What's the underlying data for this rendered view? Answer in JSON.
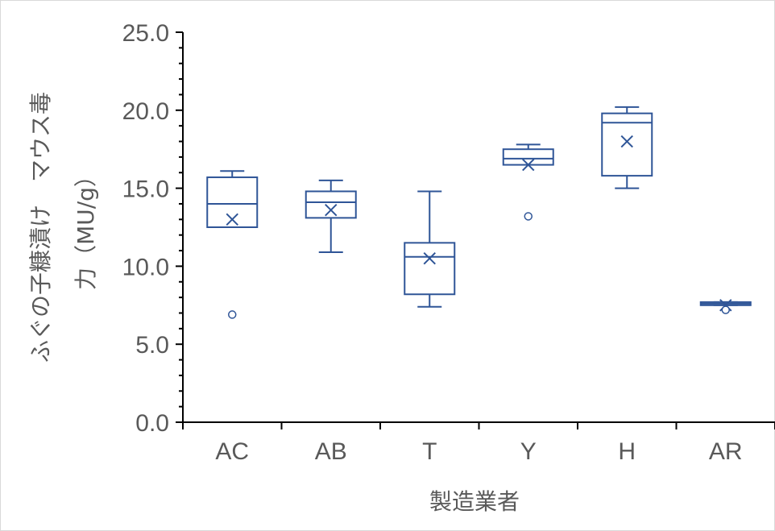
{
  "chart_data": {
    "type": "box",
    "categories": [
      "AC",
      "AB",
      "T",
      "Y",
      "H",
      "AR"
    ],
    "xlabel": "製造業者",
    "ylabel_line1": "ふぐの子糠漬け　マウス毒",
    "ylabel_line2": "力（MU/g）",
    "ylim": [
      0,
      25
    ],
    "yticks": [
      "0.0",
      "5.0",
      "10.0",
      "15.0",
      "20.0",
      "25.0"
    ],
    "ytick_values": [
      0,
      5,
      10,
      15,
      20,
      25
    ],
    "grid": false,
    "box_color": "#2F5597",
    "series": [
      {
        "category": "AC",
        "whisker_low": 12.5,
        "q1": 12.5,
        "median": 14.0,
        "q3": 15.7,
        "whisker_high": 16.1,
        "mean": 13.0,
        "outliers": [
          6.9
        ]
      },
      {
        "category": "AB",
        "whisker_low": 10.9,
        "q1": 13.1,
        "median": 14.1,
        "q3": 14.8,
        "whisker_high": 15.5,
        "mean": 13.6,
        "outliers": []
      },
      {
        "category": "T",
        "whisker_low": 7.4,
        "q1": 8.2,
        "median": 10.6,
        "q3": 11.5,
        "whisker_high": 14.8,
        "mean": 10.5,
        "outliers": []
      },
      {
        "category": "Y",
        "whisker_low": 16.5,
        "q1": 16.5,
        "median": 16.9,
        "q3": 17.5,
        "whisker_high": 17.8,
        "mean": 16.5,
        "outliers": [
          13.2
        ]
      },
      {
        "category": "H",
        "whisker_low": 15.0,
        "q1": 15.8,
        "median": 19.2,
        "q3": 19.8,
        "whisker_high": 20.2,
        "mean": 18.0,
        "outliers": []
      },
      {
        "category": "AR",
        "whisker_low": 7.5,
        "q1": 7.5,
        "median": 7.6,
        "q3": 7.7,
        "whisker_high": 7.7,
        "mean": 7.5,
        "outliers": [
          7.2
        ]
      }
    ]
  }
}
